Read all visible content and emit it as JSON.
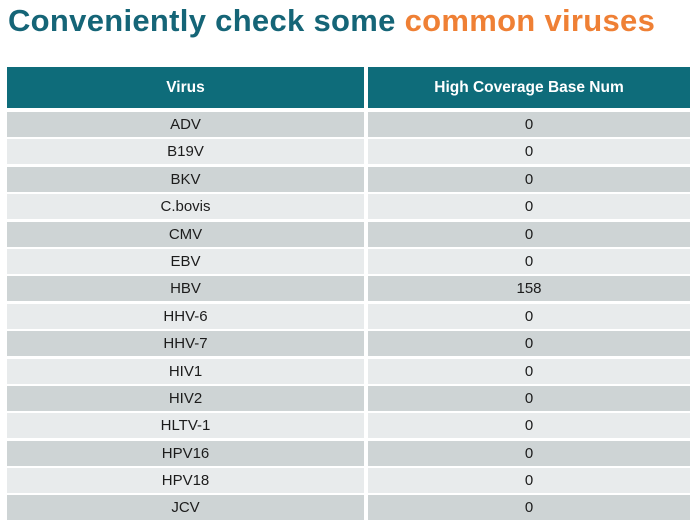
{
  "colors": {
    "page_bg": "#ffffff",
    "title_teal": "#156577",
    "title_orange": "#ef8035",
    "header_bg": "#0e6c7a",
    "header_text": "#ffffff",
    "row_dark": "#ced4d5",
    "row_light": "#e8ebec",
    "body_text": "#1c1c1c"
  },
  "chart_data": {
    "type": "table",
    "title": "Conveniently check some common viruses",
    "title_segments": [
      {
        "text": "Conveniently check some ",
        "color": "#156577"
      },
      {
        "text": "common viruses",
        "color": "#ef8035"
      }
    ],
    "columns": [
      "Virus",
      "High Coverage Base Num"
    ],
    "rows": [
      [
        "ADV",
        "0"
      ],
      [
        "B19V",
        "0"
      ],
      [
        "BKV",
        "0"
      ],
      [
        "C.bovis",
        "0"
      ],
      [
        "CMV",
        "0"
      ],
      [
        "EBV",
        "0"
      ],
      [
        "HBV",
        "158"
      ],
      [
        "HHV-6",
        "0"
      ],
      [
        "HHV-7",
        "0"
      ],
      [
        "HIV1",
        "0"
      ],
      [
        "HIV2",
        "0"
      ],
      [
        "HLTV-1",
        "0"
      ],
      [
        "HPV16",
        "0"
      ],
      [
        "HPV18",
        "0"
      ],
      [
        "JCV",
        "0"
      ]
    ]
  }
}
